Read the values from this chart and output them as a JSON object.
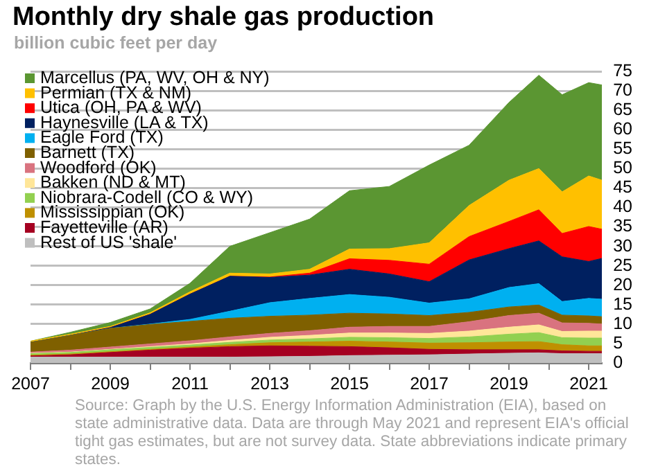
{
  "chart_data": {
    "type": "area",
    "stacked": true,
    "title": "Monthly dry shale gas production",
    "subtitle": "billion cubic feet per day",
    "x": [
      "2007-01",
      "2008-01",
      "2009-01",
      "2010-01",
      "2011-01",
      "2012-01",
      "2013-01",
      "2014-01",
      "2015-01",
      "2016-01",
      "2017-01",
      "2018-01",
      "2019-01",
      "2019-10",
      "2020-05",
      "2021-01",
      "2021-05"
    ],
    "series": [
      {
        "name": "Rest of US 'shale'",
        "color": "#bfbfbf",
        "values": [
          1.5,
          1.5,
          1.5,
          1.5,
          1.5,
          1.5,
          1.6,
          1.7,
          1.9,
          2.0,
          2.1,
          2.3,
          2.5,
          2.6,
          2.4,
          2.4,
          2.4
        ]
      },
      {
        "name": "Fayetteville (AR)",
        "color": "#a50021",
        "values": [
          0.3,
          0.6,
          1.2,
          1.8,
          2.3,
          2.7,
          2.8,
          2.6,
          2.3,
          1.9,
          1.4,
          1.1,
          0.9,
          0.8,
          0.7,
          0.6,
          0.6
        ]
      },
      {
        "name": "Mississippian (OK)",
        "color": "#bf9000",
        "values": [
          0.2,
          0.2,
          0.2,
          0.2,
          0.3,
          0.5,
          0.8,
          1.1,
          1.4,
          1.5,
          1.6,
          1.8,
          2.0,
          2.1,
          1.6,
          1.4,
          1.4
        ]
      },
      {
        "name": "Niobrara-Codell (CO & WY)",
        "color": "#92d050",
        "values": [
          0.4,
          0.4,
          0.5,
          0.5,
          0.5,
          0.6,
          0.7,
          0.8,
          1.0,
          1.1,
          1.2,
          1.5,
          2.0,
          2.3,
          1.8,
          2.0,
          2.0
        ]
      },
      {
        "name": "Bakken (ND & MT)",
        "color": "#ffe699",
        "values": [
          0.1,
          0.1,
          0.1,
          0.2,
          0.3,
          0.5,
          0.7,
          0.9,
          1.1,
          1.2,
          1.3,
          1.5,
          1.8,
          2.0,
          1.6,
          1.8,
          1.8
        ]
      },
      {
        "name": "Woodford (OK)",
        "color": "#d9737f",
        "values": [
          0.3,
          0.5,
          0.6,
          0.7,
          0.8,
          0.9,
          1.0,
          1.2,
          1.5,
          1.7,
          1.8,
          2.4,
          3.0,
          3.0,
          2.2,
          2.0,
          1.8
        ]
      },
      {
        "name": "Barnett (TX)",
        "color": "#7f6000",
        "values": [
          2.5,
          3.8,
          4.8,
          5.0,
          5.0,
          4.8,
          4.4,
          4.0,
          3.6,
          3.2,
          2.8,
          2.4,
          2.2,
          2.1,
          2.0,
          1.9,
          1.9
        ]
      },
      {
        "name": "Eagle Ford (TX)",
        "color": "#00b0f0",
        "values": [
          0,
          0,
          0,
          0.1,
          0.5,
          1.8,
          3.5,
          4.3,
          4.8,
          4.3,
          3.2,
          3.5,
          5.0,
          5.5,
          3.5,
          4.5,
          4.5
        ]
      },
      {
        "name": "Haynesville (LA & TX)",
        "color": "#002060",
        "values": [
          0,
          0,
          0.2,
          2.5,
          6.5,
          9,
          6.5,
          6,
          6.5,
          6,
          5.5,
          10,
          10,
          11,
          11.5,
          9.5,
          10.5
        ]
      },
      {
        "name": "Utica (OH, PA & WV)",
        "color": "#ff0000",
        "values": [
          0,
          0,
          0,
          0,
          0,
          0,
          0.1,
          0.5,
          2.7,
          3.5,
          4.5,
          6,
          7,
          8,
          6,
          9,
          7.5
        ]
      },
      {
        "name": "Permian (TX & NM)",
        "color": "#ffc000",
        "values": [
          0.3,
          0.3,
          0.3,
          0.4,
          0.6,
          0.8,
          0.8,
          1.0,
          2.5,
          3,
          5.5,
          8,
          10.6,
          10.6,
          10.7,
          13,
          12.6
        ]
      },
      {
        "name": "Marcellus (PA, WV, OH & NY)",
        "color": "#5b9632",
        "values": [
          0,
          0.5,
          1,
          1,
          2.2,
          6.9,
          10.6,
          12.9,
          15,
          16,
          20,
          15.5,
          20,
          24,
          25,
          24,
          24.5
        ]
      }
    ],
    "xlim": [
      "2007-01",
      "2021-05"
    ],
    "xticks": [
      {
        "value": "2007",
        "label": "2007"
      },
      {
        "value": "2008",
        "label": null
      },
      {
        "value": "2009",
        "label": "2009"
      },
      {
        "value": "2010",
        "label": null
      },
      {
        "value": "2011",
        "label": "2011"
      },
      {
        "value": "2012",
        "label": null
      },
      {
        "value": "2013",
        "label": "2013"
      },
      {
        "value": "2014",
        "label": null
      },
      {
        "value": "2015",
        "label": "2015"
      },
      {
        "value": "2016",
        "label": null
      },
      {
        "value": "2017",
        "label": "2017"
      },
      {
        "value": "2018",
        "label": null
      },
      {
        "value": "2019",
        "label": "2019"
      },
      {
        "value": "2020",
        "label": null
      },
      {
        "value": "2021",
        "label": "2021"
      }
    ],
    "ylim": [
      0,
      75
    ],
    "yticks": [
      0,
      5,
      10,
      15,
      20,
      25,
      30,
      35,
      40,
      45,
      50,
      55,
      60,
      65,
      70,
      75
    ],
    "grid": "y",
    "legend": "top left",
    "annotations": [
      "Source: Graph by the U.S. Energy Information Administration (EIA), based on state administrative data. Data are through May 2021 and represent EIA's official tight gas estimates, but are not survey data. State abbreviations indicate primary states."
    ]
  }
}
